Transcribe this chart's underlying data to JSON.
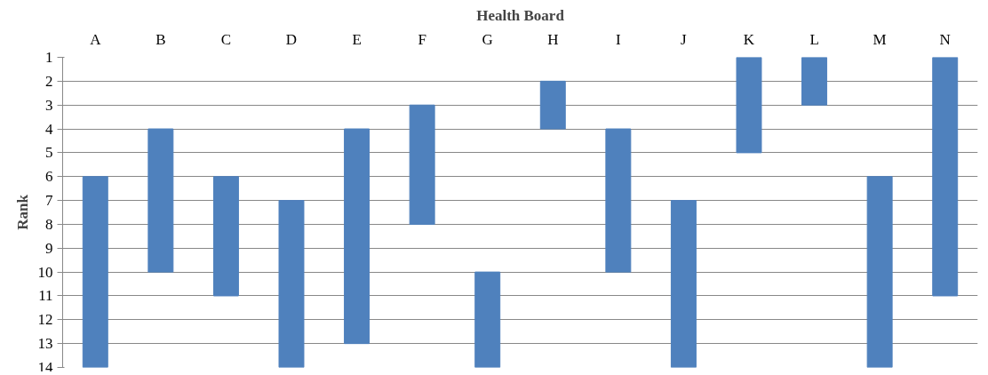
{
  "chart_data": {
    "type": "bar",
    "title": "Health Board",
    "ylabel": "Rank",
    "categories": [
      "A",
      "B",
      "C",
      "D",
      "E",
      "F",
      "G",
      "H",
      "I",
      "J",
      "K",
      "L",
      "M",
      "N"
    ],
    "base": [
      6,
      4,
      6,
      7,
      4,
      3,
      10,
      2,
      4,
      7,
      1,
      1,
      6,
      1
    ],
    "values": [
      8,
      6,
      5,
      7,
      9,
      5,
      4,
      2,
      6,
      7,
      4,
      2,
      8,
      10
    ],
    "color": "#4f81bd",
    "ylim": [
      14,
      1
    ],
    "yticks": [
      1,
      2,
      3,
      4,
      5,
      6,
      7,
      8,
      9,
      10,
      11,
      12,
      13,
      14
    ],
    "grid": "y"
  }
}
